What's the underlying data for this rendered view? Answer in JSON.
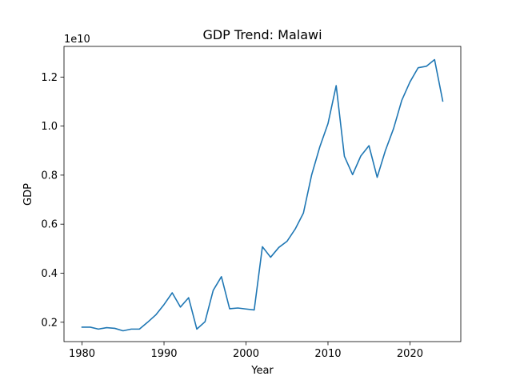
{
  "chart_data": {
    "type": "line",
    "title": "GDP Trend: Malawi",
    "xlabel": "Year",
    "ylabel": "GDP",
    "y_multiplier_label": "1e10",
    "y_multiplier": 10000000000,
    "xlim": [
      1977.8,
      2026.2
    ],
    "ylim": [
      0.121,
      1.325
    ],
    "x_ticks": [
      1980,
      1990,
      2000,
      2010,
      2020
    ],
    "x_tick_labels": [
      "1980",
      "1990",
      "2000",
      "2010",
      "2020"
    ],
    "y_ticks": [
      0.2,
      0.4,
      0.6,
      0.8,
      1.0,
      1.2
    ],
    "y_tick_labels": [
      "0.2",
      "0.4",
      "0.6",
      "0.8",
      "1.0",
      "1.2"
    ],
    "grid": false,
    "legend": "none",
    "series": [
      {
        "color": "#1f77b4",
        "x": [
          1980,
          1981,
          1982,
          1983,
          1984,
          1985,
          1986,
          1987,
          1988,
          1989,
          1990,
          1991,
          1992,
          1993,
          1994,
          1995,
          1996,
          1997,
          1998,
          1999,
          2000,
          2001,
          2002,
          2003,
          2004,
          2005,
          2006,
          2007,
          2008,
          2009,
          2010,
          2011,
          2012,
          2013,
          2014,
          2015,
          2016,
          2017,
          2018,
          2019,
          2020,
          2021,
          2022,
          2023,
          2024
        ],
        "y": [
          0.18,
          0.18,
          0.172,
          0.178,
          0.175,
          0.165,
          0.172,
          0.172,
          0.2,
          0.23,
          0.272,
          0.32,
          0.262,
          0.3,
          0.172,
          0.202,
          0.33,
          0.386,
          0.255,
          0.258,
          0.254,
          0.25,
          0.508,
          0.465,
          0.505,
          0.53,
          0.58,
          0.645,
          0.8,
          0.915,
          1.01,
          1.165,
          0.877,
          0.802,
          0.878,
          0.92,
          0.791,
          0.9,
          0.99,
          1.105,
          1.18,
          1.238,
          1.244,
          1.271,
          1.102
        ]
      }
    ]
  }
}
